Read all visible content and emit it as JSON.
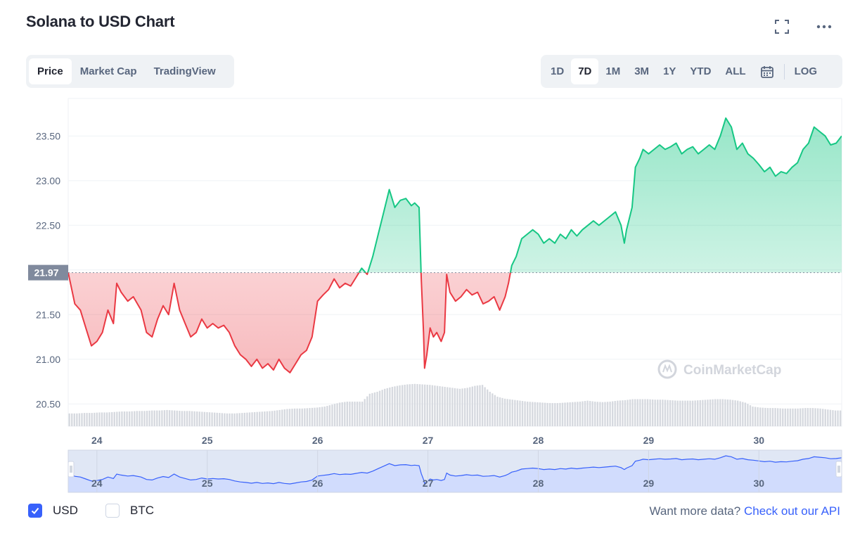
{
  "title": "Solana to USD Chart",
  "header_icons": {
    "expand": "fullscreen-icon",
    "more": "more-dots-icon"
  },
  "view_tabs": [
    {
      "label": "Price",
      "active": true
    },
    {
      "label": "Market Cap",
      "active": false
    },
    {
      "label": "TradingView",
      "active": false
    }
  ],
  "range_tabs": [
    {
      "label": "1D",
      "active": false
    },
    {
      "label": "7D",
      "active": true
    },
    {
      "label": "1M",
      "active": false
    },
    {
      "label": "3M",
      "active": false
    },
    {
      "label": "1Y",
      "active": false
    },
    {
      "label": "YTD",
      "active": false
    },
    {
      "label": "ALL",
      "active": false
    }
  ],
  "calendar_icon": "calendar-icon",
  "log_label": "LOG",
  "colors": {
    "up": "#16c784",
    "down": "#ea3943",
    "navigator_line": "#3861fb",
    "navigator_fill": "#dfe6fd",
    "baseline_label_bg": "#808a9d",
    "checkbox": "#3861fb",
    "link": "#3861fb"
  },
  "chart_data": {
    "type": "line",
    "baseline": 21.97,
    "baseline_label": "21.97",
    "ylim": [
      20.25,
      23.92
    ],
    "yticks": [
      20.5,
      21.0,
      21.5,
      22.0,
      22.5,
      23.0,
      23.5
    ],
    "ytick_labels": [
      "20.50",
      "21.00",
      "21.50",
      "",
      "22.50",
      "23.00",
      "23.50"
    ],
    "xlim": [
      23.74,
      30.75
    ],
    "xticks": [
      24,
      25,
      26,
      27,
      28,
      29,
      30
    ],
    "xtick_labels": [
      "24",
      "25",
      "26",
      "27",
      "28",
      "29",
      "30"
    ],
    "price_points": [
      [
        23.74,
        21.97
      ],
      [
        23.8,
        21.62
      ],
      [
        23.85,
        21.55
      ],
      [
        23.9,
        21.35
      ],
      [
        23.95,
        21.15
      ],
      [
        24.0,
        21.2
      ],
      [
        24.05,
        21.3
      ],
      [
        24.1,
        21.55
      ],
      [
        24.15,
        21.4
      ],
      [
        24.18,
        21.85
      ],
      [
        24.22,
        21.75
      ],
      [
        24.28,
        21.65
      ],
      [
        24.33,
        21.7
      ],
      [
        24.4,
        21.55
      ],
      [
        24.45,
        21.3
      ],
      [
        24.5,
        21.25
      ],
      [
        24.55,
        21.45
      ],
      [
        24.6,
        21.6
      ],
      [
        24.65,
        21.5
      ],
      [
        24.7,
        21.85
      ],
      [
        24.75,
        21.55
      ],
      [
        24.8,
        21.4
      ],
      [
        24.85,
        21.25
      ],
      [
        24.9,
        21.3
      ],
      [
        24.95,
        21.45
      ],
      [
        25.0,
        21.35
      ],
      [
        25.05,
        21.4
      ],
      [
        25.1,
        21.35
      ],
      [
        25.15,
        21.38
      ],
      [
        25.2,
        21.3
      ],
      [
        25.25,
        21.15
      ],
      [
        25.3,
        21.05
      ],
      [
        25.35,
        21.0
      ],
      [
        25.4,
        20.92
      ],
      [
        25.45,
        21.0
      ],
      [
        25.5,
        20.9
      ],
      [
        25.55,
        20.95
      ],
      [
        25.6,
        20.88
      ],
      [
        25.65,
        21.0
      ],
      [
        25.7,
        20.9
      ],
      [
        25.75,
        20.85
      ],
      [
        25.8,
        20.95
      ],
      [
        25.85,
        21.05
      ],
      [
        25.9,
        21.1
      ],
      [
        25.95,
        21.25
      ],
      [
        26.0,
        21.65
      ],
      [
        26.05,
        21.72
      ],
      [
        26.1,
        21.78
      ],
      [
        26.15,
        21.9
      ],
      [
        26.2,
        21.8
      ],
      [
        26.25,
        21.85
      ],
      [
        26.3,
        21.82
      ],
      [
        26.35,
        21.92
      ],
      [
        26.4,
        22.02
      ],
      [
        26.45,
        21.95
      ],
      [
        26.5,
        22.15
      ],
      [
        26.55,
        22.4
      ],
      [
        26.6,
        22.65
      ],
      [
        26.65,
        22.9
      ],
      [
        26.7,
        22.7
      ],
      [
        26.75,
        22.78
      ],
      [
        26.8,
        22.8
      ],
      [
        26.85,
        22.72
      ],
      [
        26.88,
        22.75
      ],
      [
        26.92,
        22.7
      ],
      [
        26.94,
        21.9
      ],
      [
        26.96,
        21.3
      ],
      [
        26.97,
        20.9
      ],
      [
        26.99,
        21.05
      ],
      [
        27.02,
        21.35
      ],
      [
        27.05,
        21.25
      ],
      [
        27.08,
        21.3
      ],
      [
        27.12,
        21.2
      ],
      [
        27.15,
        21.3
      ],
      [
        27.17,
        21.95
      ],
      [
        27.2,
        21.75
      ],
      [
        27.25,
        21.65
      ],
      [
        27.3,
        21.7
      ],
      [
        27.35,
        21.78
      ],
      [
        27.4,
        21.72
      ],
      [
        27.45,
        21.75
      ],
      [
        27.5,
        21.62
      ],
      [
        27.55,
        21.65
      ],
      [
        27.6,
        21.7
      ],
      [
        27.65,
        21.55
      ],
      [
        27.7,
        21.7
      ],
      [
        27.73,
        21.85
      ],
      [
        27.76,
        22.05
      ],
      [
        27.8,
        22.15
      ],
      [
        27.85,
        22.35
      ],
      [
        27.9,
        22.4
      ],
      [
        27.95,
        22.45
      ],
      [
        28.0,
        22.4
      ],
      [
        28.05,
        22.3
      ],
      [
        28.1,
        22.35
      ],
      [
        28.15,
        22.3
      ],
      [
        28.2,
        22.4
      ],
      [
        28.25,
        22.35
      ],
      [
        28.3,
        22.45
      ],
      [
        28.35,
        22.38
      ],
      [
        28.4,
        22.45
      ],
      [
        28.45,
        22.5
      ],
      [
        28.5,
        22.55
      ],
      [
        28.55,
        22.5
      ],
      [
        28.6,
        22.55
      ],
      [
        28.65,
        22.6
      ],
      [
        28.7,
        22.65
      ],
      [
        28.75,
        22.5
      ],
      [
        28.78,
        22.3
      ],
      [
        28.8,
        22.45
      ],
      [
        28.85,
        22.7
      ],
      [
        28.88,
        23.15
      ],
      [
        28.92,
        23.25
      ],
      [
        28.95,
        23.35
      ],
      [
        29.0,
        23.3
      ],
      [
        29.05,
        23.35
      ],
      [
        29.1,
        23.4
      ],
      [
        29.15,
        23.35
      ],
      [
        29.2,
        23.38
      ],
      [
        29.25,
        23.42
      ],
      [
        29.3,
        23.3
      ],
      [
        29.35,
        23.35
      ],
      [
        29.4,
        23.38
      ],
      [
        29.45,
        23.3
      ],
      [
        29.5,
        23.35
      ],
      [
        29.55,
        23.4
      ],
      [
        29.6,
        23.35
      ],
      [
        29.65,
        23.5
      ],
      [
        29.7,
        23.7
      ],
      [
        29.75,
        23.6
      ],
      [
        29.8,
        23.35
      ],
      [
        29.85,
        23.42
      ],
      [
        29.9,
        23.3
      ],
      [
        29.95,
        23.25
      ],
      [
        30.0,
        23.18
      ],
      [
        30.05,
        23.1
      ],
      [
        30.1,
        23.15
      ],
      [
        30.15,
        23.05
      ],
      [
        30.2,
        23.1
      ],
      [
        30.25,
        23.08
      ],
      [
        30.3,
        23.15
      ],
      [
        30.35,
        23.2
      ],
      [
        30.4,
        23.35
      ],
      [
        30.45,
        23.42
      ],
      [
        30.5,
        23.6
      ],
      [
        30.55,
        23.55
      ],
      [
        30.6,
        23.5
      ],
      [
        30.65,
        23.4
      ],
      [
        30.7,
        23.42
      ],
      [
        30.75,
        23.5
      ]
    ],
    "volume": [
      0.26,
      0.26,
      0.27,
      0.27,
      0.28,
      0.28,
      0.29,
      0.3,
      0.3,
      0.31,
      0.31,
      0.32,
      0.32,
      0.33,
      0.32,
      0.31,
      0.31,
      0.3,
      0.29,
      0.28,
      0.27,
      0.26,
      0.26,
      0.27,
      0.28,
      0.29,
      0.3,
      0.31,
      0.33,
      0.35,
      0.36,
      0.36,
      0.37,
      0.38,
      0.4,
      0.44,
      0.48,
      0.5,
      0.5,
      0.5,
      0.66,
      0.7,
      0.76,
      0.8,
      0.83,
      0.85,
      0.86,
      0.85,
      0.84,
      0.82,
      0.8,
      0.78,
      0.76,
      0.78,
      0.82,
      0.84,
      0.7,
      0.6,
      0.56,
      0.54,
      0.52,
      0.5,
      0.49,
      0.48,
      0.47,
      0.47,
      0.48,
      0.49,
      0.5,
      0.52,
      0.5,
      0.49,
      0.5,
      0.52,
      0.53,
      0.55,
      0.55,
      0.55,
      0.54,
      0.54,
      0.53,
      0.52,
      0.52,
      0.52,
      0.53,
      0.54,
      0.55,
      0.55,
      0.54,
      0.52,
      0.48,
      0.4,
      0.38,
      0.37,
      0.37,
      0.36,
      0.36,
      0.36,
      0.37,
      0.37,
      0.36,
      0.34,
      0.32
    ],
    "navigator": {
      "xtick_labels": [
        "24",
        "25",
        "26",
        "27",
        "28",
        "29",
        "30"
      ]
    },
    "watermark": "CoinMarketCap"
  },
  "legend": [
    {
      "label": "USD",
      "checked": true
    },
    {
      "label": "BTC",
      "checked": false
    }
  ],
  "footer": {
    "prompt": "Want more data?",
    "link": "Check out our API"
  }
}
